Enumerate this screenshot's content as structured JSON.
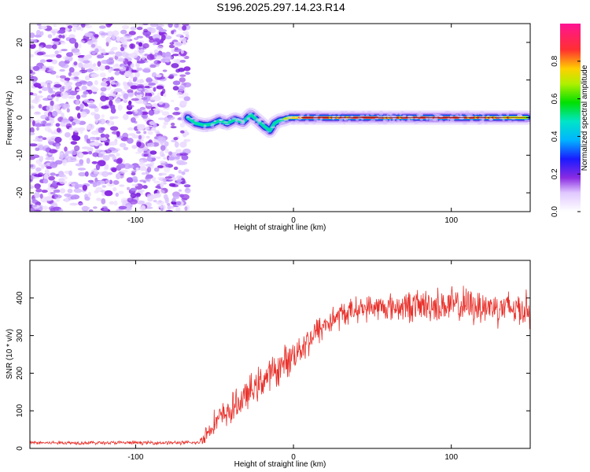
{
  "chart_data": [
    {
      "type": "heatmap",
      "title": "S196.2025.297.14.23.R14",
      "xlabel": "Height of straight line (km)",
      "ylabel": "Frequency (Hz)",
      "xlim": [
        -167,
        150
      ],
      "ylim": [
        -25,
        25
      ],
      "x_ticks": [
        -100,
        0,
        100
      ],
      "y_ticks": [
        -20,
        -10,
        0,
        10,
        20
      ],
      "x_tick_labels": [
        "-100",
        "0",
        "100"
      ],
      "y_tick_labels": [
        "-20",
        "-10",
        "0",
        "10",
        "20"
      ],
      "noise_region_x": [
        -167,
        -67
      ],
      "signal": {
        "x": [
          -67,
          -62,
          -57,
          -52,
          -47,
          -42,
          -37,
          -32,
          -27,
          -22,
          -18,
          -15,
          -12,
          -9,
          -6,
          -3,
          0,
          5,
          10,
          30,
          50,
          70,
          90,
          110,
          130,
          148
        ],
        "freq": [
          0,
          -1.5,
          -2,
          -1.8,
          -0.8,
          -1.5,
          -0.5,
          -1.2,
          0.8,
          -1,
          -2.5,
          -3.5,
          -1.5,
          -0.8,
          -0.5,
          0,
          0,
          0,
          0,
          0,
          0,
          0,
          0,
          0,
          0,
          0
        ],
        "amplitude": [
          0.3,
          0.25,
          0.3,
          0.3,
          0.35,
          0.4,
          0.45,
          0.45,
          0.4,
          0.35,
          0.3,
          0.3,
          0.35,
          0.4,
          0.5,
          0.6,
          0.7,
          0.8,
          0.85,
          0.8,
          0.85,
          0.8,
          0.9,
          0.85,
          0.8,
          0.7
        ]
      },
      "colorbar": {
        "label": "Normalized spectral amplitude",
        "range": [
          0,
          1
        ],
        "ticks": [
          0.0,
          0.2,
          0.4,
          0.6,
          0.8
        ],
        "tick_labels": [
          "0.0",
          "0.2",
          "0.4",
          "0.6",
          "0.8"
        ]
      }
    },
    {
      "type": "line",
      "xlabel": "Height of straight line (km)",
      "ylabel": "SNR (10 * v/v)",
      "xlim": [
        -167,
        150
      ],
      "ylim": [
        0,
        500
      ],
      "x_ticks": [
        -100,
        0,
        100
      ],
      "y_ticks": [
        0,
        100,
        200,
        300,
        400
      ],
      "x_tick_labels": [
        "-100",
        "0",
        "100"
      ],
      "y_tick_labels": [
        "0",
        "100",
        "200",
        "300",
        "400"
      ],
      "color": "#e8302a",
      "trend": {
        "x": [
          -167,
          -60,
          -55,
          -50,
          -40,
          -30,
          -20,
          -10,
          0,
          10,
          20,
          30,
          40,
          50,
          60,
          80,
          100,
          120,
          150
        ],
        "y": [
          15,
          15,
          40,
          70,
          100,
          140,
          180,
          210,
          250,
          290,
          330,
          355,
          370,
          375,
          375,
          380,
          380,
          378,
          370
        ]
      },
      "noise_amplitude": {
        "x": [
          -167,
          -60,
          -55,
          -40,
          -20,
          0,
          20,
          40,
          60,
          80,
          100,
          120,
          150
        ],
        "y": [
          6,
          6,
          35,
          50,
          55,
          55,
          50,
          40,
          45,
          55,
          60,
          60,
          60
        ]
      }
    }
  ]
}
